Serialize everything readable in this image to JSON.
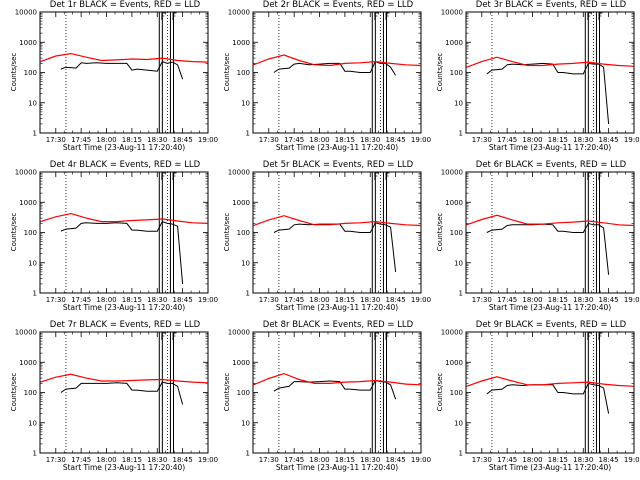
{
  "chart_data": [
    {
      "type": "line",
      "title": "Det 1r BLACK = Events, RED = LLD",
      "ylabel": "Counts/sec",
      "xlabel": "Start Time (23-Aug-11 17:20:40)",
      "xticks": [
        "17:30",
        "17:45",
        "18:00",
        "18:15",
        "18:30",
        "18:45",
        "19:00"
      ],
      "yticks": [
        "1",
        "10",
        "100",
        "1000",
        "10000"
      ],
      "yscale": "log",
      "ylim": [
        1,
        10000
      ],
      "series": [
        {
          "color": "#000000",
          "x": [
            17.55,
            17.6,
            17.7,
            17.75,
            17.8,
            17.9,
            18.0,
            18.1,
            18.2,
            18.25,
            18.3,
            18.4,
            18.5,
            18.55,
            18.6,
            18.65,
            18.7,
            18.75
          ],
          "y": [
            130,
            150,
            140,
            210,
            200,
            210,
            200,
            200,
            200,
            120,
            130,
            120,
            110,
            230,
            200,
            220,
            180,
            60
          ]
        },
        {
          "color": "#ff0000",
          "x": [
            17.35,
            17.5,
            17.65,
            17.8,
            17.95,
            18.1,
            18.25,
            18.4,
            18.55,
            18.7,
            18.85,
            19.0
          ],
          "y": [
            230,
            350,
            420,
            320,
            250,
            260,
            280,
            270,
            300,
            250,
            230,
            220
          ]
        }
      ]
    },
    {
      "type": "line",
      "title": "Det 2r BLACK = Events, RED = LLD",
      "ylabel": "Counts/sec",
      "xlabel": "Start Time (23-Aug-11 17:20:40)",
      "xticks": [
        "17:30",
        "17:45",
        "18:00",
        "18:15",
        "18:30",
        "18:45",
        "19:00"
      ],
      "yticks": [
        "1",
        "10",
        "100",
        "1000",
        "10000"
      ],
      "yscale": "log",
      "ylim": [
        1,
        10000
      ],
      "series": [
        {
          "color": "#000000",
          "x": [
            17.55,
            17.6,
            17.7,
            17.75,
            17.8,
            17.9,
            18.0,
            18.1,
            18.2,
            18.25,
            18.3,
            18.4,
            18.5,
            18.55,
            18.6,
            18.65,
            18.7,
            18.75
          ],
          "y": [
            100,
            130,
            140,
            190,
            200,
            180,
            190,
            200,
            200,
            110,
            110,
            100,
            100,
            230,
            200,
            200,
            150,
            80
          ]
        },
        {
          "color": "#ff0000",
          "x": [
            17.35,
            17.5,
            17.65,
            17.8,
            17.95,
            18.1,
            18.25,
            18.4,
            18.55,
            18.7,
            18.85,
            19.0
          ],
          "y": [
            180,
            280,
            380,
            250,
            180,
            170,
            200,
            210,
            230,
            200,
            180,
            170
          ]
        }
      ]
    },
    {
      "type": "line",
      "title": "Det 3r BLACK = Events, RED = LLD",
      "ylabel": "Counts/sec",
      "xlabel": "Start Time (23-Aug-11 17:20:40)",
      "xticks": [
        "17:30",
        "17:45",
        "18:00",
        "18:15",
        "18:30",
        "18:45",
        "19:00"
      ],
      "yticks": [
        "1",
        "10",
        "100",
        "1000",
        "10000"
      ],
      "yscale": "log",
      "ylim": [
        1,
        10000
      ],
      "series": [
        {
          "color": "#000000",
          "x": [
            17.55,
            17.6,
            17.7,
            17.75,
            17.8,
            17.9,
            18.0,
            18.1,
            18.2,
            18.25,
            18.3,
            18.4,
            18.5,
            18.55,
            18.6,
            18.65,
            18.7,
            18.75
          ],
          "y": [
            90,
            120,
            130,
            180,
            190,
            180,
            190,
            200,
            190,
            100,
            100,
            90,
            90,
            200,
            190,
            190,
            150,
            2
          ]
        },
        {
          "color": "#ff0000",
          "x": [
            17.35,
            17.5,
            17.65,
            17.8,
            17.95,
            18.1,
            18.25,
            18.4,
            18.55,
            18.7,
            18.85,
            19.0
          ],
          "y": [
            150,
            230,
            320,
            230,
            170,
            170,
            190,
            200,
            220,
            190,
            170,
            160
          ]
        }
      ]
    },
    {
      "type": "line",
      "title": "Det 4r BLACK = Events, RED = LLD",
      "ylabel": "Counts/sec",
      "xlabel": "Start Time (23-Aug-11 17:20:40)",
      "xticks": [
        "17:30",
        "17:45",
        "18:00",
        "18:15",
        "18:30",
        "18:45",
        "19:00"
      ],
      "yticks": [
        "1",
        "10",
        "100",
        "1000",
        "10000"
      ],
      "yscale": "log",
      "ylim": [
        1,
        10000
      ],
      "series": [
        {
          "color": "#000000",
          "x": [
            17.55,
            17.6,
            17.7,
            17.75,
            17.8,
            17.9,
            18.0,
            18.1,
            18.2,
            18.25,
            18.3,
            18.4,
            18.5,
            18.55,
            18.6,
            18.65,
            18.7,
            18.75
          ],
          "y": [
            110,
            130,
            140,
            200,
            210,
            200,
            200,
            210,
            200,
            120,
            120,
            110,
            110,
            230,
            200,
            190,
            160,
            2
          ]
        },
        {
          "color": "#ff0000",
          "x": [
            17.35,
            17.5,
            17.65,
            17.8,
            17.95,
            18.1,
            18.25,
            18.4,
            18.55,
            18.7,
            18.85,
            19.0
          ],
          "y": [
            230,
            330,
            420,
            300,
            230,
            230,
            250,
            260,
            280,
            240,
            210,
            200
          ]
        }
      ]
    },
    {
      "type": "line",
      "title": "Det 5r BLACK = Events, RED = LLD",
      "ylabel": "Counts/sec",
      "xlabel": "Start Time (23-Aug-11 17:20:40)",
      "xticks": [
        "17:30",
        "17:45",
        "18:00",
        "18:15",
        "18:30",
        "18:45",
        "19:00"
      ],
      "yticks": [
        "1",
        "10",
        "100",
        "1000",
        "10000"
      ],
      "yscale": "log",
      "ylim": [
        1,
        10000
      ],
      "series": [
        {
          "color": "#000000",
          "x": [
            17.55,
            17.6,
            17.7,
            17.75,
            17.8,
            17.9,
            18.0,
            18.1,
            18.2,
            18.25,
            18.3,
            18.4,
            18.5,
            18.55,
            18.6,
            18.65,
            18.7,
            18.75
          ],
          "y": [
            100,
            120,
            130,
            180,
            190,
            180,
            190,
            190,
            190,
            110,
            110,
            100,
            100,
            210,
            190,
            180,
            150,
            5
          ]
        },
        {
          "color": "#ff0000",
          "x": [
            17.35,
            17.5,
            17.65,
            17.8,
            17.95,
            18.1,
            18.25,
            18.4,
            18.55,
            18.7,
            18.85,
            19.0
          ],
          "y": [
            170,
            260,
            360,
            250,
            180,
            180,
            200,
            210,
            230,
            200,
            180,
            170
          ]
        }
      ]
    },
    {
      "type": "line",
      "title": "Det 6r BLACK = Events, RED = LLD",
      "ylabel": "Counts/sec",
      "xlabel": "Start Time (23-Aug-11 17:20:40)",
      "xticks": [
        "17:30",
        "17:45",
        "18:00",
        "18:15",
        "18:30",
        "18:45",
        "19:00"
      ],
      "yticks": [
        "1",
        "10",
        "100",
        "1000",
        "10000"
      ],
      "yscale": "log",
      "ylim": [
        1,
        10000
      ],
      "series": [
        {
          "color": "#000000",
          "x": [
            17.55,
            17.6,
            17.7,
            17.75,
            17.8,
            17.9,
            18.0,
            18.1,
            18.2,
            18.25,
            18.3,
            18.4,
            18.5,
            18.55,
            18.6,
            18.65,
            18.7,
            18.75
          ],
          "y": [
            100,
            120,
            130,
            170,
            180,
            180,
            180,
            190,
            180,
            110,
            110,
            100,
            100,
            200,
            180,
            180,
            140,
            4
          ]
        },
        {
          "color": "#ff0000",
          "x": [
            17.35,
            17.5,
            17.65,
            17.8,
            17.95,
            18.1,
            18.25,
            18.4,
            18.55,
            18.7,
            18.85,
            19.0
          ],
          "y": [
            180,
            270,
            370,
            260,
            190,
            190,
            210,
            220,
            240,
            210,
            180,
            170
          ]
        }
      ]
    },
    {
      "type": "line",
      "title": "Det 7r BLACK = Events, RED = LLD",
      "ylabel": "Counts/sec",
      "xlabel": "Start Time (23-Aug-11 17:20:40)",
      "xticks": [
        "17:30",
        "17:45",
        "18:00",
        "18:15",
        "18:30",
        "18:45",
        "19:00"
      ],
      "yticks": [
        "1",
        "10",
        "100",
        "1000",
        "10000"
      ],
      "yscale": "log",
      "ylim": [
        1,
        10000
      ],
      "series": [
        {
          "color": "#000000",
          "x": [
            17.55,
            17.6,
            17.7,
            17.75,
            17.8,
            17.9,
            18.0,
            18.1,
            18.2,
            18.25,
            18.3,
            18.4,
            18.5,
            18.55,
            18.6,
            18.65,
            18.7,
            18.75
          ],
          "y": [
            100,
            130,
            140,
            200,
            200,
            200,
            200,
            210,
            200,
            120,
            120,
            110,
            110,
            220,
            200,
            200,
            160,
            40
          ]
        },
        {
          "color": "#ff0000",
          "x": [
            17.35,
            17.5,
            17.65,
            17.8,
            17.95,
            18.1,
            18.25,
            18.4,
            18.55,
            18.7,
            18.85,
            19.0
          ],
          "y": [
            220,
            320,
            400,
            300,
            240,
            240,
            250,
            260,
            270,
            240,
            220,
            210
          ]
        }
      ]
    },
    {
      "type": "line",
      "title": "Det 8r BLACK = Events, RED = LLD",
      "ylabel": "Counts/sec",
      "xlabel": "Start Time (23-Aug-11 17:20:40)",
      "xticks": [
        "17:30",
        "17:45",
        "18:00",
        "18:15",
        "18:30",
        "18:45",
        "19:00"
      ],
      "yticks": [
        "1",
        "10",
        "100",
        "1000",
        "10000"
      ],
      "yscale": "log",
      "ylim": [
        1,
        10000
      ],
      "series": [
        {
          "color": "#000000",
          "x": [
            17.55,
            17.6,
            17.7,
            17.75,
            17.8,
            17.9,
            18.0,
            18.1,
            18.2,
            18.25,
            18.3,
            18.4,
            18.5,
            18.55,
            18.6,
            18.65,
            18.7,
            18.75
          ],
          "y": [
            110,
            140,
            160,
            230,
            230,
            220,
            230,
            240,
            230,
            130,
            130,
            120,
            120,
            250,
            230,
            220,
            180,
            60
          ]
        },
        {
          "color": "#ff0000",
          "x": [
            17.35,
            17.5,
            17.65,
            17.8,
            17.95,
            18.1,
            18.25,
            18.4,
            18.55,
            18.7,
            18.85,
            19.0
          ],
          "y": [
            180,
            290,
            420,
            270,
            200,
            200,
            220,
            230,
            250,
            220,
            190,
            180
          ]
        }
      ]
    },
    {
      "type": "line",
      "title": "Det 9r BLACK = Events, RED = LLD",
      "ylabel": "Counts/sec",
      "xlabel": "Start Time (23-Aug-11 17:20:40)",
      "xticks": [
        "17:30",
        "17:45",
        "18:00",
        "18:15",
        "18:30",
        "18:45",
        "19:00"
      ],
      "yticks": [
        "1",
        "10",
        "100",
        "1000",
        "10000"
      ],
      "yscale": "log",
      "ylim": [
        1,
        10000
      ],
      "series": [
        {
          "color": "#000000",
          "x": [
            17.55,
            17.6,
            17.7,
            17.75,
            17.8,
            17.9,
            18.0,
            18.1,
            18.2,
            18.25,
            18.3,
            18.4,
            18.5,
            18.55,
            18.6,
            18.65,
            18.7,
            18.75
          ],
          "y": [
            90,
            120,
            130,
            170,
            180,
            170,
            180,
            180,
            180,
            100,
            100,
            90,
            90,
            200,
            180,
            170,
            140,
            20
          ]
        },
        {
          "color": "#ff0000",
          "x": [
            17.35,
            17.5,
            17.65,
            17.8,
            17.95,
            18.1,
            18.25,
            18.4,
            18.55,
            18.7,
            18.85,
            19.0
          ],
          "y": [
            160,
            240,
            330,
            240,
            180,
            180,
            200,
            210,
            220,
            190,
            170,
            160
          ]
        }
      ]
    }
  ],
  "vlines_dotted_x": [
    17.6,
    18.6
  ],
  "vlines_solid_x": [
    18.52,
    18.55,
    18.63,
    18.66
  ],
  "colors": {
    "events": "#000000",
    "lld": "#ff0000"
  }
}
